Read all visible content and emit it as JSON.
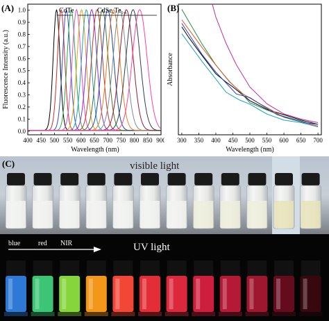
{
  "panels": {
    "a": {
      "letter": "(A)",
      "cdte_label": "CdTe",
      "cdsete_label": "CdSe",
      "cdsete_sub1": "x",
      "cdsete_mid": "Te",
      "cdsete_sub2": "1-x"
    },
    "b": {
      "letter": "(B)"
    },
    "c": {
      "letter": "(C)",
      "visible_label": "visible light",
      "uv_label": "UV light",
      "arrow_labels": [
        "blue",
        "red",
        "NIR"
      ]
    }
  },
  "chart_data": [
    {
      "type": "line",
      "title": "",
      "xlabel": "Wavelength (nm)",
      "ylabel": "Fluorescence Intensity (a.u.)",
      "xlim": [
        400,
        900
      ],
      "ylim": [
        0,
        1.0
      ],
      "xticks": [
        400,
        450,
        500,
        550,
        600,
        650,
        700,
        750,
        800,
        850,
        900
      ],
      "yticks": [
        0.0,
        0.1,
        0.2,
        0.3,
        0.4,
        0.5,
        0.6,
        0.7,
        0.8,
        0.9,
        1.0
      ],
      "ytick_labels": [
        "0.0",
        "0.1",
        "0.2",
        "0.3",
        "0.4",
        "0.5",
        "0.6",
        "0.7",
        "0.8",
        "0.9",
        "1.0"
      ],
      "grid": false,
      "series": [
        {
          "peak": 508,
          "fwhm": 30,
          "color": "#000000"
        },
        {
          "peak": 525,
          "fwhm": 32,
          "color": "#d8272d"
        },
        {
          "peak": 545,
          "fwhm": 34,
          "color": "#2f4bd6"
        },
        {
          "peak": 563,
          "fwhm": 36,
          "color": "#2aa64a"
        },
        {
          "peak": 583,
          "fwhm": 38,
          "color": "#d94fc8"
        },
        {
          "peak": 602,
          "fwhm": 40,
          "color": "#e0a11a"
        },
        {
          "peak": 620,
          "fwhm": 42,
          "color": "#1aa3b3"
        },
        {
          "peak": 640,
          "fwhm": 45,
          "color": "#8a2be2"
        },
        {
          "peak": 660,
          "fwhm": 48,
          "color": "#c0392b"
        },
        {
          "peak": 680,
          "fwhm": 50,
          "color": "#556b2f"
        },
        {
          "peak": 700,
          "fwhm": 52,
          "color": "#1f3fa8"
        },
        {
          "peak": 722,
          "fwhm": 55,
          "color": "#e67e22"
        },
        {
          "peak": 745,
          "fwhm": 58,
          "color": "#7f8c8d"
        },
        {
          "peak": 770,
          "fwhm": 60,
          "color": "#9b1b30"
        },
        {
          "peak": 795,
          "fwhm": 62,
          "color": "#2c3e50"
        },
        {
          "peak": 820,
          "fwhm": 65,
          "color": "#ff3fa0"
        }
      ]
    },
    {
      "type": "line",
      "title": "",
      "xlabel": "Wavelength (nm)",
      "ylabel": "Absorbance",
      "xlim": [
        300,
        700
      ],
      "xticks": [
        300,
        350,
        400,
        450,
        500,
        550,
        600,
        650,
        700
      ],
      "grid": false,
      "series": [
        {
          "color": "#000000",
          "x": [
            300,
            320,
            350,
            400,
            430,
            450,
            500,
            550,
            600,
            650,
            680,
            700
          ],
          "y": [
            0.62,
            0.56,
            0.48,
            0.35,
            0.3,
            0.27,
            0.2,
            0.15,
            0.11,
            0.085,
            0.07,
            0.06
          ]
        },
        {
          "color": "#2a8a4a",
          "x": [
            300,
            330,
            360,
            400,
            440,
            470,
            500,
            550,
            600,
            650,
            680,
            700
          ],
          "y": [
            0.72,
            0.62,
            0.52,
            0.4,
            0.3,
            0.25,
            0.19,
            0.14,
            0.1,
            0.08,
            0.06,
            0.05
          ]
        },
        {
          "color": "#e05a2a",
          "x": [
            300,
            330,
            360,
            400,
            440,
            480,
            520,
            560,
            600,
            650,
            680,
            700
          ],
          "y": [
            0.66,
            0.58,
            0.5,
            0.4,
            0.3,
            0.24,
            0.19,
            0.14,
            0.1,
            0.075,
            0.06,
            0.05
          ]
        },
        {
          "color": "#2b3fb8",
          "x": [
            300,
            330,
            360,
            400,
            430,
            460,
            500,
            540,
            580,
            620,
            660,
            700
          ],
          "y": [
            0.64,
            0.55,
            0.46,
            0.36,
            0.3,
            0.24,
            0.21,
            0.16,
            0.12,
            0.09,
            0.07,
            0.06
          ]
        },
        {
          "color": "#1aa3b3",
          "x": [
            300,
            330,
            360,
            400,
            430,
            470,
            500,
            550,
            600,
            650,
            680,
            700
          ],
          "y": [
            0.58,
            0.5,
            0.42,
            0.32,
            0.25,
            0.2,
            0.17,
            0.12,
            0.09,
            0.07,
            0.055,
            0.045
          ]
        },
        {
          "color": "#c02f9f",
          "x": [
            320,
            340,
            360,
            380,
            400,
            430,
            460,
            500,
            550,
            600,
            650,
            700
          ],
          "y": [
            1.35,
            1.15,
            0.98,
            0.82,
            0.68,
            0.52,
            0.4,
            0.28,
            0.18,
            0.12,
            0.09,
            0.07
          ]
        }
      ]
    }
  ],
  "vials": [
    {
      "uv": "#2f7fe0"
    },
    {
      "uv": "#3fd07a"
    },
    {
      "uv": "#8ee03f"
    },
    {
      "uv": "#ff9f1a"
    },
    {
      "uv": "#ff4a3a"
    },
    {
      "uv": "#f0303a"
    },
    {
      "uv": "#e82a40"
    },
    {
      "uv": "#d82040"
    },
    {
      "uv": "#c01a38"
    },
    {
      "uv": "#a81830"
    },
    {
      "uv": "#6a0c20"
    },
    {
      "uv": "#3a0810"
    }
  ]
}
